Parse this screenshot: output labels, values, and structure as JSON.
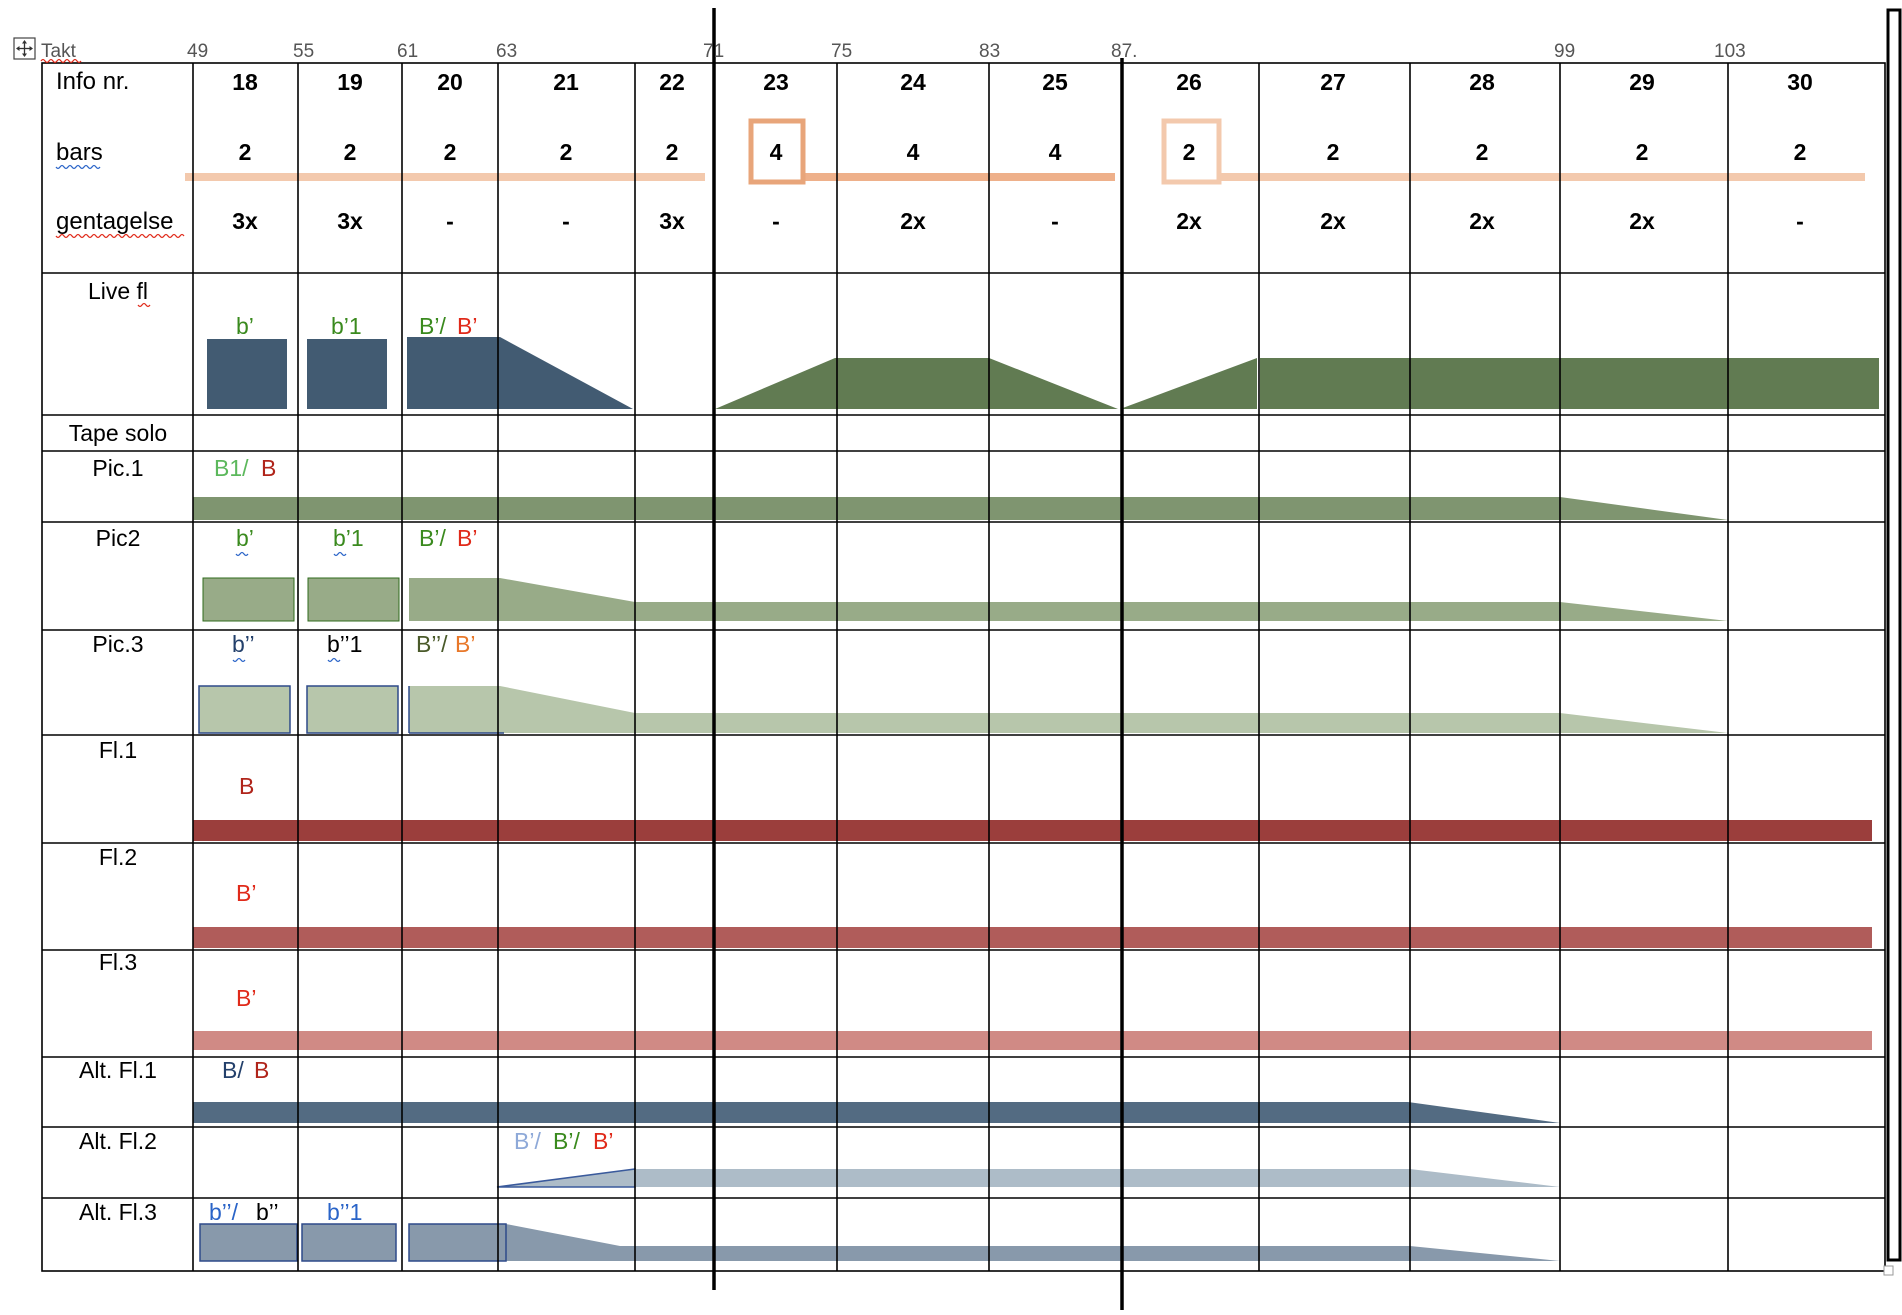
{
  "colors": {
    "grid": "#000000",
    "peach": "#f3c9ad",
    "peach_dark": "#e8a57a",
    "slate": "#425b72",
    "moss": "#617b52",
    "sage": "#7f9570",
    "sage_light": "#98ab88",
    "sage_pale": "#b7c6ab",
    "red_dark": "#9b3e3c",
    "red_mid": "#b05c5a",
    "rose": "#d08a85",
    "steel": "#536b82",
    "steel_light": "#adbcc8",
    "steel_mid": "#8899ab",
    "green_text": "#3a8a1e",
    "red_text": "#e02a1a",
    "darkred_text": "#b0241a",
    "blue_text": "#2a64c8",
    "navy_text": "#23406b",
    "lightblue_text": "#8ea9d8",
    "orange_text": "#e8782a",
    "lightgreen_text": "#5cb85c",
    "darkgreen_text": "#4a5a2a"
  },
  "takt": {
    "label": "Takt",
    "marks": [
      "49",
      "55",
      "61",
      "63",
      "71",
      "75",
      "83",
      "87.",
      "99",
      "103"
    ]
  },
  "header": {
    "info_label": "Info nr.",
    "bars_label": "bars",
    "rep_label": "gentagelse",
    "info": [
      "18",
      "19",
      "20",
      "21",
      "22",
      "23",
      "24",
      "25",
      "26",
      "27",
      "28",
      "29",
      "30"
    ],
    "bars": [
      "2",
      "2",
      "2",
      "2",
      "2",
      "4",
      "4",
      "4",
      "2",
      "2",
      "2",
      "2",
      "2"
    ],
    "rep": [
      "3x",
      "3x",
      "-",
      "-",
      "3x",
      "-",
      "2x",
      "-",
      "2x",
      "2x",
      "2x",
      "2x",
      "-"
    ]
  },
  "instruments": [
    {
      "name": "Live fl"
    },
    {
      "name": "Tape solo"
    },
    {
      "name": "Pic.1"
    },
    {
      "name": "Pic2"
    },
    {
      "name": "Pic.3"
    },
    {
      "name": "Fl.1"
    },
    {
      "name": "Fl.2"
    },
    {
      "name": "Fl.3"
    },
    {
      "name": "Alt. Fl.1"
    },
    {
      "name": "Alt. Fl.2"
    },
    {
      "name": "Alt. Fl.3"
    }
  ],
  "annotations": {
    "live_18": "b’",
    "live_19": "b’1",
    "live_20a": "B’/",
    "live_20b": "B’",
    "pic1_a": "B1/",
    "pic1_b": "B",
    "pic2_18": "b’",
    "pic2_19": "b’1",
    "pic2_20a": "B’/",
    "pic2_20b": "B’",
    "pic3_18": "b’’",
    "pic3_19": "b’’1",
    "pic3_20a": "B’’/",
    "pic3_20b": "B’",
    "fl1": "B",
    "fl2": "B’",
    "fl3": "B’",
    "alt1_a": "B/",
    "alt1_b": "B",
    "alt2_a": "B’/",
    "alt2_b": "B’/",
    "alt2_c": "B’",
    "alt3_a": "b’’/",
    "alt3_b": "b’’",
    "alt3_c": "b’’1"
  }
}
